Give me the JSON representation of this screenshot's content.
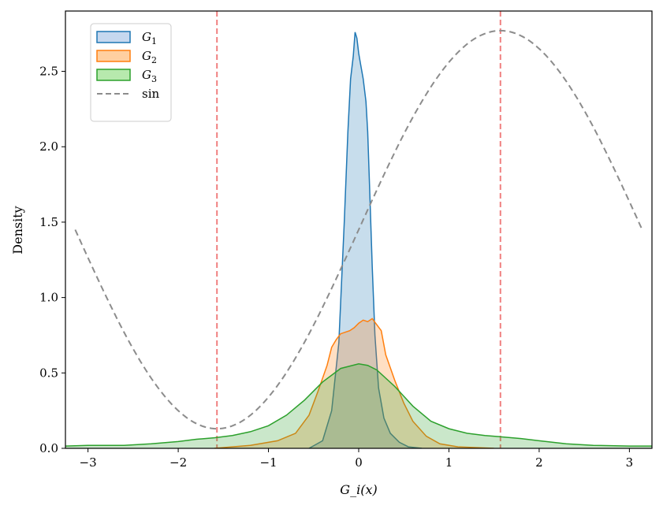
{
  "chart_data": {
    "type": "area",
    "title": "",
    "xlabel": "G_i(x)",
    "ylabel": "Density",
    "xlim": [
      -3.25,
      3.25
    ],
    "ylim": [
      0,
      2.9
    ],
    "grid": false,
    "legend_position": "top-left",
    "x_ticks": [
      -3,
      -2,
      -1,
      0,
      1,
      2,
      3
    ],
    "x_tick_labels": [
      "−3",
      "−2",
      "−1",
      "0",
      "1",
      "2",
      "3"
    ],
    "y_ticks": [
      0,
      0.5,
      1.0,
      1.5,
      2.0,
      2.5
    ],
    "y_tick_labels": [
      "0.0",
      "0.5",
      "1.0",
      "1.5",
      "2.0",
      "2.5"
    ],
    "vlines": [
      -1.5708,
      1.5708
    ],
    "vline_color": "#f08080",
    "series": [
      {
        "name": "G_1",
        "color": "#1f77b4",
        "fill": "#aec7e8",
        "x": [
          -0.55,
          -0.4,
          -0.3,
          -0.22,
          -0.16,
          -0.12,
          -0.09,
          -0.06,
          -0.04,
          -0.02,
          0.0,
          0.02,
          0.05,
          0.08,
          0.1,
          0.12,
          0.15,
          0.18,
          0.22,
          0.28,
          0.35,
          0.45,
          0.55,
          0.7
        ],
        "values": [
          0.0,
          0.05,
          0.25,
          0.7,
          1.5,
          2.1,
          2.45,
          2.6,
          2.76,
          2.72,
          2.62,
          2.55,
          2.45,
          2.3,
          2.1,
          1.75,
          1.2,
          0.75,
          0.4,
          0.2,
          0.1,
          0.04,
          0.01,
          0.0
        ]
      },
      {
        "name": "G_2",
        "color": "#ff7f0e",
        "fill": "#ffbb78",
        "x": [
          -1.6,
          -1.2,
          -0.9,
          -0.7,
          -0.55,
          -0.45,
          -0.35,
          -0.3,
          -0.25,
          -0.2,
          -0.1,
          -0.05,
          0.0,
          0.05,
          0.1,
          0.15,
          0.2,
          0.25,
          0.3,
          0.4,
          0.5,
          0.6,
          0.75,
          0.9,
          1.1,
          1.5
        ],
        "values": [
          0.0,
          0.02,
          0.05,
          0.1,
          0.22,
          0.38,
          0.55,
          0.67,
          0.72,
          0.76,
          0.78,
          0.8,
          0.83,
          0.85,
          0.84,
          0.86,
          0.82,
          0.78,
          0.62,
          0.45,
          0.3,
          0.18,
          0.08,
          0.03,
          0.01,
          0.0
        ]
      },
      {
        "name": "G_3",
        "color": "#2ca02c",
        "fill": "#98df8a",
        "x": [
          -3.25,
          -3.0,
          -2.6,
          -2.3,
          -2.0,
          -1.8,
          -1.6,
          -1.4,
          -1.2,
          -1.0,
          -0.8,
          -0.6,
          -0.4,
          -0.2,
          0.0,
          0.1,
          0.2,
          0.4,
          0.6,
          0.8,
          1.0,
          1.2,
          1.4,
          1.6,
          1.8,
          2.0,
          2.3,
          2.6,
          3.0,
          3.25
        ],
        "values": [
          0.015,
          0.02,
          0.02,
          0.03,
          0.045,
          0.06,
          0.07,
          0.085,
          0.11,
          0.15,
          0.22,
          0.32,
          0.44,
          0.53,
          0.56,
          0.55,
          0.52,
          0.41,
          0.28,
          0.18,
          0.13,
          0.1,
          0.085,
          0.075,
          0.065,
          0.05,
          0.03,
          0.02,
          0.015,
          0.015
        ]
      },
      {
        "name": "sin",
        "color": "#8c8c8c",
        "style": "dashed",
        "formula": "1.45 + 1.32*sin(x)",
        "x_range": [
          -3.1416,
          3.1416
        ]
      }
    ]
  },
  "legend": {
    "items": [
      {
        "symbol": "G",
        "sub": "1",
        "swatch": "#aec7e8",
        "edge": "#1f77b4"
      },
      {
        "symbol": "G",
        "sub": "2",
        "swatch": "#ffbb78",
        "edge": "#ff7f0e"
      },
      {
        "symbol": "G",
        "sub": "3",
        "swatch": "#98df8a",
        "edge": "#2ca02c"
      },
      {
        "label": "sin",
        "edge": "#8c8c8c"
      }
    ]
  }
}
